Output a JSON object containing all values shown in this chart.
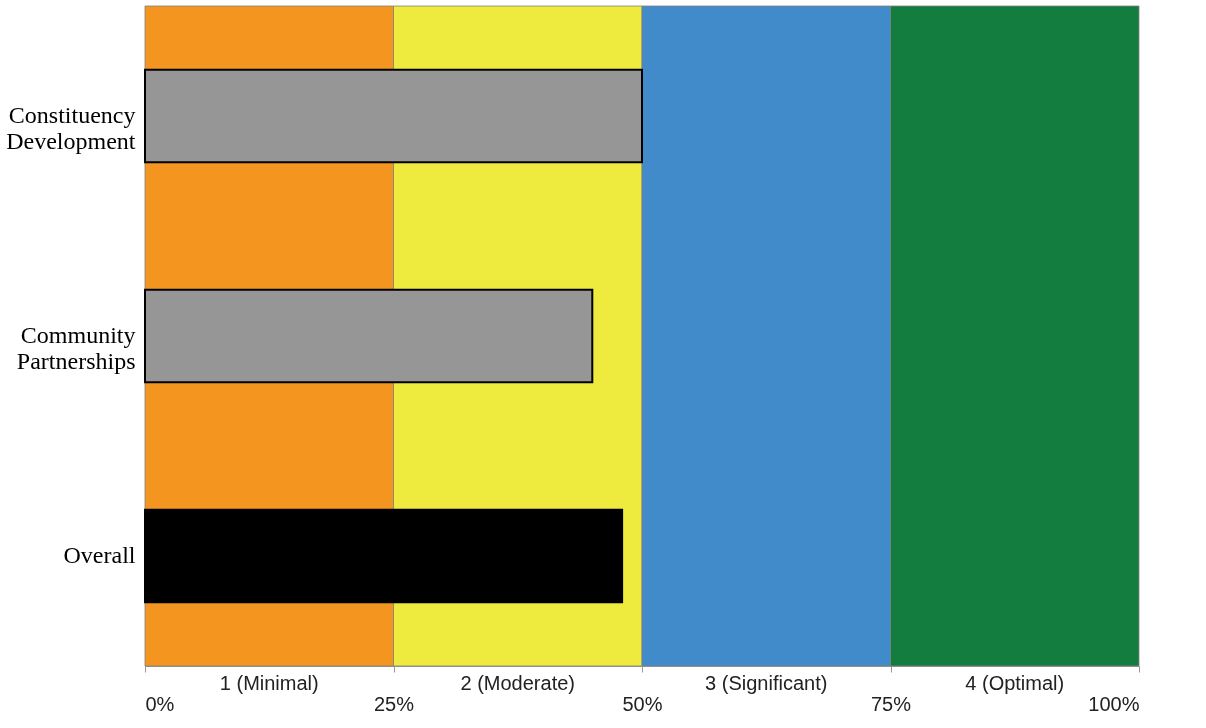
{
  "chart_data": {
    "type": "bar",
    "orientation": "horizontal",
    "categories": [
      "Constituency Development",
      "Community Partnerships",
      "Overall"
    ],
    "values": [
      50,
      45,
      48
    ],
    "colors": [
      "#969696",
      "#969696",
      "#000000"
    ],
    "xlim": [
      0,
      100
    ],
    "xticks": [
      {
        "value": 0,
        "label": "0%"
      },
      {
        "value": 25,
        "label": "25%"
      },
      {
        "value": 50,
        "label": "50%"
      },
      {
        "value": 75,
        "label": "75%"
      },
      {
        "value": 100,
        "label": "100%"
      }
    ],
    "bands": [
      {
        "axis": "x",
        "from": 0,
        "to": 25,
        "label": "1 (Minimal)",
        "color": "#f4951f"
      },
      {
        "axis": "x",
        "from": 25,
        "to": 50,
        "label": "2 (Moderate)",
        "color": "#eeea3e"
      },
      {
        "axis": "x",
        "from": 50,
        "to": 75,
        "label": "3 (Significant)",
        "color": "#428bca"
      },
      {
        "axis": "x",
        "from": 75,
        "to": 100,
        "label": "4 (Optimal)",
        "color": "#137d3f"
      }
    ],
    "grid": false
  }
}
